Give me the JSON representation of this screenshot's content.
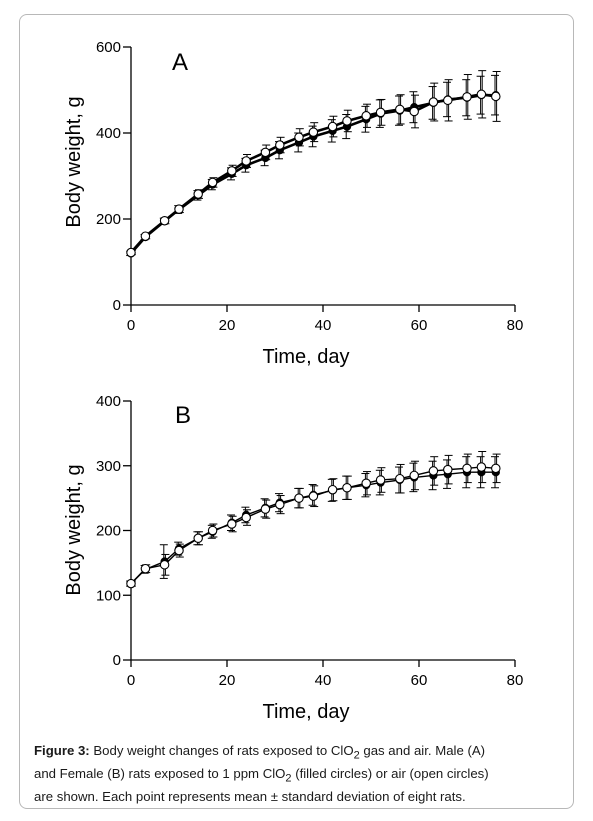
{
  "chart_data": [
    {
      "type": "line",
      "panel_label": "A",
      "xlabel": "Time, day",
      "ylabel": "Body weight, g",
      "xlim": [
        0,
        80
      ],
      "ylim": [
        0,
        600
      ],
      "xticks": [
        0,
        20,
        40,
        60,
        80
      ],
      "yticks": [
        0,
        200,
        400,
        600
      ],
      "grid": false,
      "series": [
        {
          "marker": "filled-circle",
          "x": [
            0,
            3,
            7,
            10,
            14,
            17,
            21,
            24,
            28,
            31,
            35,
            38,
            42,
            45,
            49,
            52,
            56,
            59,
            63,
            66,
            70,
            73,
            76
          ],
          "y": [
            120,
            158,
            195,
            222,
            255,
            280,
            305,
            325,
            342,
            360,
            378,
            392,
            405,
            415,
            432,
            445,
            452,
            460,
            470,
            478,
            482,
            488,
            488
          ],
          "err": [
            5,
            6,
            7,
            9,
            11,
            12,
            14,
            16,
            18,
            20,
            22,
            24,
            26,
            28,
            30,
            32,
            34,
            36,
            38,
            40,
            42,
            44,
            46
          ]
        },
        {
          "marker": "open-circle",
          "x": [
            0,
            3,
            7,
            10,
            14,
            17,
            21,
            24,
            28,
            31,
            35,
            38,
            42,
            45,
            49,
            52,
            56,
            59,
            63,
            66,
            70,
            73,
            76
          ],
          "y": [
            122,
            160,
            196,
            223,
            258,
            285,
            312,
            335,
            355,
            372,
            390,
            402,
            415,
            428,
            440,
            448,
            455,
            450,
            472,
            476,
            484,
            490,
            485
          ],
          "err": [
            5,
            6,
            7,
            8,
            10,
            11,
            13,
            15,
            17,
            18,
            20,
            22,
            24,
            25,
            27,
            30,
            34,
            38,
            44,
            48,
            52,
            55,
            58
          ]
        }
      ]
    },
    {
      "type": "line",
      "panel_label": "B",
      "xlabel": "Time, day",
      "ylabel": "Body weight, g",
      "xlim": [
        0,
        80
      ],
      "ylim": [
        0,
        400
      ],
      "xticks": [
        0,
        20,
        40,
        60,
        80
      ],
      "yticks": [
        0,
        100,
        200,
        300,
        400
      ],
      "grid": false,
      "series": [
        {
          "marker": "filled-circle",
          "x": [
            0,
            3,
            7,
            10,
            14,
            17,
            21,
            24,
            28,
            31,
            35,
            38,
            42,
            45,
            49,
            52,
            56,
            59,
            63,
            66,
            70,
            73,
            76
          ],
          "y": [
            118,
            140,
            152,
            172,
            188,
            198,
            212,
            224,
            235,
            243,
            250,
            255,
            262,
            266,
            270,
            274,
            278,
            282,
            285,
            287,
            290,
            290,
            290
          ],
          "err": [
            4,
            6,
            26,
            10,
            10,
            10,
            12,
            12,
            14,
            14,
            15,
            16,
            17,
            18,
            18,
            19,
            20,
            22,
            22,
            22,
            24,
            24,
            24
          ]
        },
        {
          "marker": "open-circle",
          "x": [
            0,
            3,
            7,
            10,
            14,
            17,
            21,
            24,
            28,
            31,
            35,
            38,
            42,
            45,
            49,
            52,
            56,
            59,
            63,
            66,
            70,
            73,
            76
          ],
          "y": [
            118,
            141,
            147,
            169,
            188,
            200,
            210,
            220,
            233,
            240,
            250,
            253,
            263,
            266,
            273,
            278,
            280,
            285,
            292,
            294,
            296,
            298,
            296
          ],
          "err": [
            4,
            6,
            16,
            10,
            10,
            10,
            12,
            12,
            14,
            14,
            15,
            16,
            17,
            18,
            18,
            19,
            22,
            22,
            22,
            22,
            22,
            24,
            22
          ]
        }
      ]
    }
  ],
  "caption": {
    "label": "Figure 3:",
    "lines": [
      [
        "Body weight changes of rats exposed to ClO",
        "2",
        " gas and air. Male (A)"
      ],
      [
        "and Female (B) rats exposed to 1 ppm ClO",
        "2",
        " (filled circles) or air (open circles)"
      ],
      [
        "are shown. Each point represents mean ± standard deviation of eight rats."
      ]
    ]
  }
}
